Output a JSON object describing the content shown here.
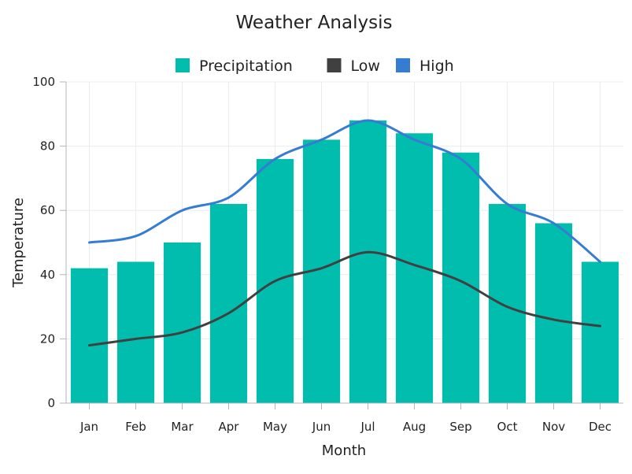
{
  "chart_data": {
    "type": "bar",
    "title": "Weather Analysis",
    "xlabel": "Month",
    "ylabel": "Temperature",
    "ylim": [
      0,
      100
    ],
    "yticks": [
      0,
      20,
      40,
      60,
      80,
      100
    ],
    "grid": true,
    "legend_position": "top-center",
    "categories": [
      "Jan",
      "Feb",
      "Mar",
      "Apr",
      "May",
      "Jun",
      "Jul",
      "Aug",
      "Sep",
      "Oct",
      "Nov",
      "Dec"
    ],
    "series": [
      {
        "name": "Precipitation",
        "kind": "bar",
        "color": "#00bdae",
        "values": [
          42,
          44,
          50,
          62,
          76,
          82,
          88,
          84,
          78,
          62,
          56,
          44
        ]
      },
      {
        "name": "Low",
        "kind": "spline",
        "color": "#404041",
        "values": [
          18,
          20,
          22,
          28,
          38,
          42,
          47,
          43,
          38,
          30,
          26,
          24
        ]
      },
      {
        "name": "High",
        "kind": "spline",
        "color": "#357cd2",
        "values": [
          50,
          52,
          60,
          64,
          76,
          82,
          88,
          82,
          76,
          62,
          56,
          44
        ]
      }
    ]
  }
}
